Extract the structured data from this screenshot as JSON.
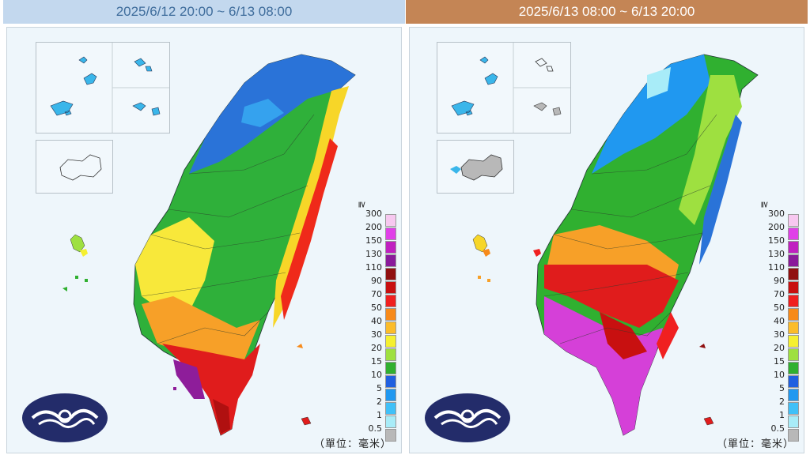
{
  "panels": [
    {
      "title": "2025/6/12 20:00 ~ 6/13 08:00",
      "header_color": "#c3d8ee",
      "header_text_color": "#3f6d9c"
    },
    {
      "title": "2025/6/13 08:00 ~ 6/13 20:00",
      "header_color": "#c48555",
      "header_text_color": "#ffffff"
    }
  ],
  "legend": {
    "ge_symbol": "≧",
    "items": [
      {
        "label": "300",
        "color": "#f7c8f0"
      },
      {
        "label": "200",
        "color": "#e040e8"
      },
      {
        "label": "150",
        "color": "#c020c0"
      },
      {
        "label": "130",
        "color": "#8a1a9a"
      },
      {
        "label": "110",
        "color": "#901010"
      },
      {
        "label": "90",
        "color": "#c81010"
      },
      {
        "label": "70",
        "color": "#f02020"
      },
      {
        "label": "50",
        "color": "#f78a1a"
      },
      {
        "label": "40",
        "color": "#fbbc2a"
      },
      {
        "label": "30",
        "color": "#f5f030"
      },
      {
        "label": "20",
        "color": "#9ee040"
      },
      {
        "label": "15",
        "color": "#30b030"
      },
      {
        "label": "10",
        "color": "#2060e0"
      },
      {
        "label": "5",
        "color": "#2098f0"
      },
      {
        "label": "2",
        "color": "#40c0f8"
      },
      {
        "label": "1",
        "color": "#a8ecf8"
      },
      {
        "label": "0.5",
        "color": "#b8b8b8"
      }
    ]
  },
  "unit_text": "（單位：毫米）"
}
